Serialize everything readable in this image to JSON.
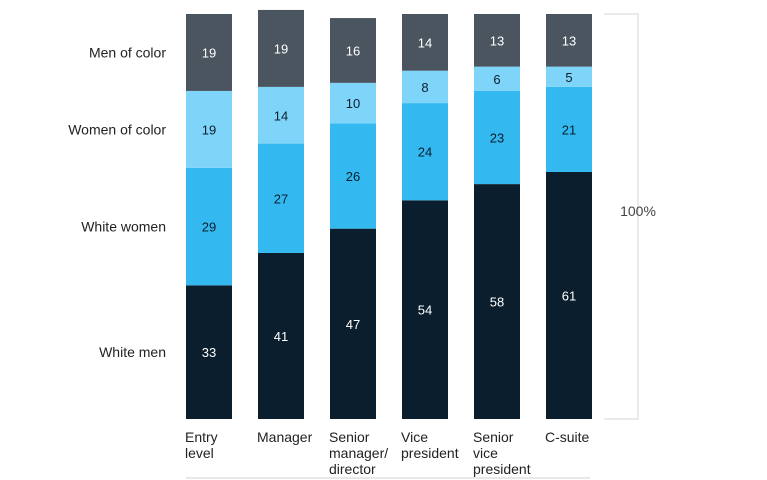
{
  "chart_data": {
    "type": "bar",
    "stacked": true,
    "categories": [
      [
        "Entry",
        "level"
      ],
      [
        "Manager"
      ],
      [
        "Senior",
        "manager/",
        "director"
      ],
      [
        "Vice",
        "president"
      ],
      [
        "Senior",
        "vice",
        "president"
      ],
      [
        "C-suite"
      ]
    ],
    "series": [
      {
        "name": "White men",
        "color": "#0b1e2d",
        "values": [
          33,
          41,
          47,
          54,
          58,
          61
        ]
      },
      {
        "name": "White women",
        "color": "#33b9f0",
        "values": [
          29,
          27,
          26,
          24,
          23,
          21
        ]
      },
      {
        "name": "Women of color",
        "color": "#7fd4f9",
        "values": [
          19,
          14,
          10,
          8,
          6,
          5
        ]
      },
      {
        "name": "Men of color",
        "color": "#4a555f",
        "values": [
          19,
          19,
          16,
          14,
          13,
          13
        ]
      }
    ],
    "total_label": "100%",
    "ylim": [
      0,
      100
    ],
    "legend_position": "left"
  }
}
